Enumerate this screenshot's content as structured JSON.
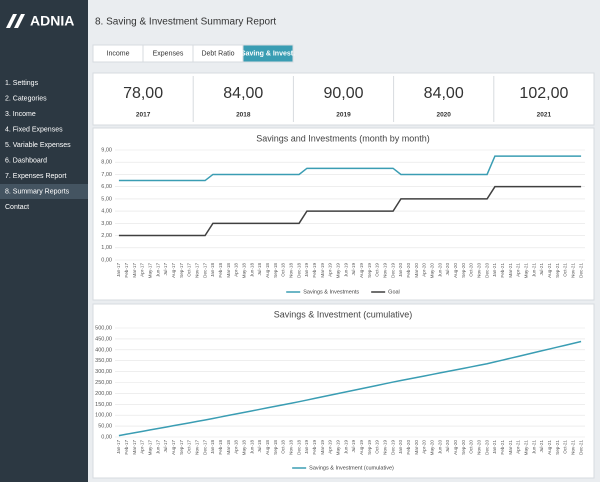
{
  "sidebar": {
    "logo": "ADNIA",
    "items": [
      "1. Settings",
      "2. Categories",
      "3. Income",
      "4. Fixed Expenses",
      "5. Variable Expenses",
      "6. Dashboard",
      "7. Expenses Report",
      "8. Summary Reports",
      "Contact"
    ],
    "active_item": 7
  },
  "header": {
    "title": "8. Saving & Investment Summary Report"
  },
  "tabs": {
    "items": [
      "Income",
      "Expenses",
      "Debt Ratio",
      "Saving & Invest."
    ],
    "active_tab": 3
  },
  "kpis": [
    {
      "value": "78,00",
      "year": "2017"
    },
    {
      "value": "84,00",
      "year": "2018"
    },
    {
      "value": "90,00",
      "year": "2019"
    },
    {
      "value": "84,00",
      "year": "2020"
    },
    {
      "value": "102,00",
      "year": "2021"
    }
  ],
  "chart_data": [
    {
      "type": "line",
      "title": "Savings and Investments (month by month)",
      "categories": [
        "Jan-17",
        "Feb-17",
        "Mar-17",
        "Apr-17",
        "May-17",
        "Jun-17",
        "Jul-17",
        "Aug-17",
        "Sep-17",
        "Oct-17",
        "Nov-17",
        "Dec-17",
        "Jan-18",
        "Feb-18",
        "Mar-18",
        "Apr-18",
        "May-18",
        "Jun-18",
        "Jul-18",
        "Aug-18",
        "Sep-18",
        "Oct-18",
        "Nov-18",
        "Dec-18",
        "Jan-19",
        "Feb-19",
        "Mar-19",
        "Apr-19",
        "May-19",
        "Jun-19",
        "Jul-19",
        "Aug-19",
        "Sep-19",
        "Oct-19",
        "Nov-19",
        "Dec-19",
        "Jan-20",
        "Feb-20",
        "Mar-20",
        "Apr-20",
        "May-20",
        "Jun-20",
        "Jul-20",
        "Aug-20",
        "Sep-20",
        "Oct-20",
        "Nov-20",
        "Dec-20",
        "Jan-21",
        "Feb-21",
        "Mar-21",
        "Apr-21",
        "May-21",
        "Jun-21",
        "Jul-21",
        "Aug-21",
        "Sep-21",
        "Oct-21",
        "Nov-21",
        "Dec-21"
      ],
      "series": [
        {
          "name": "Savings & Investments",
          "color": "#3a9db3",
          "values": [
            6.5,
            6.5,
            6.5,
            6.5,
            6.5,
            6.5,
            6.5,
            6.5,
            6.5,
            6.5,
            6.5,
            6.5,
            7,
            7,
            7,
            7,
            7,
            7,
            7,
            7,
            7,
            7,
            7,
            7,
            7.5,
            7.5,
            7.5,
            7.5,
            7.5,
            7.5,
            7.5,
            7.5,
            7.5,
            7.5,
            7.5,
            7.5,
            7,
            7,
            7,
            7,
            7,
            7,
            7,
            7,
            7,
            7,
            7,
            7,
            8.5,
            8.5,
            8.5,
            8.5,
            8.5,
            8.5,
            8.5,
            8.5,
            8.5,
            8.5,
            8.5,
            8.5
          ]
        },
        {
          "name": "Goal",
          "color": "#404040",
          "values": [
            2,
            2,
            2,
            2,
            2,
            2,
            2,
            2,
            2,
            2,
            2,
            2,
            3,
            3,
            3,
            3,
            3,
            3,
            3,
            3,
            3,
            3,
            3,
            3,
            4,
            4,
            4,
            4,
            4,
            4,
            4,
            4,
            4,
            4,
            4,
            4,
            5,
            5,
            5,
            5,
            5,
            5,
            5,
            5,
            5,
            5,
            5,
            5,
            6,
            6,
            6,
            6,
            6,
            6,
            6,
            6,
            6,
            6,
            6,
            6
          ]
        }
      ],
      "ylim": [
        0,
        9
      ],
      "yticks": [
        {
          "value": 0,
          "label": "0,00"
        },
        {
          "value": 1,
          "label": "1,00"
        },
        {
          "value": 2,
          "label": "2,00"
        },
        {
          "value": 3,
          "label": "3,00"
        },
        {
          "value": 4,
          "label": "4,00"
        },
        {
          "value": 5,
          "label": "5,00"
        },
        {
          "value": 6,
          "label": "6,00"
        },
        {
          "value": 7,
          "label": "7,00"
        },
        {
          "value": 8,
          "label": "8,00"
        },
        {
          "value": 9,
          "label": "9,00"
        }
      ],
      "grid": true
    },
    {
      "type": "line",
      "title": "Savings & Investment (cumulative)",
      "categories": [
        "Jan-17",
        "Feb-17",
        "Mar-17",
        "Apr-17",
        "May-17",
        "Jun-17",
        "Jul-17",
        "Aug-17",
        "Sep-17",
        "Oct-17",
        "Nov-17",
        "Dec-17",
        "Jan-18",
        "Feb-18",
        "Mar-18",
        "Apr-18",
        "May-18",
        "Jun-18",
        "Jul-18",
        "Aug-18",
        "Sep-18",
        "Oct-18",
        "Nov-18",
        "Dec-18",
        "Jan-19",
        "Feb-19",
        "Mar-19",
        "Apr-19",
        "May-19",
        "Jun-19",
        "Jul-19",
        "Aug-19",
        "Sep-19",
        "Oct-19",
        "Nov-19",
        "Dec-19",
        "Jan-20",
        "Feb-20",
        "Mar-20",
        "Apr-20",
        "May-20",
        "Jun-20",
        "Jul-20",
        "Aug-20",
        "Sep-20",
        "Oct-20",
        "Nov-20",
        "Dec-20",
        "Jan-21",
        "Feb-21",
        "Mar-21",
        "Apr-21",
        "May-21",
        "Jun-21",
        "Jul-21",
        "Aug-21",
        "Sep-21",
        "Oct-21",
        "Nov-21",
        "Dec-21"
      ],
      "series": [
        {
          "name": "Savings & Investment (cumulative)",
          "color": "#3a9db3",
          "values": [
            6.5,
            13,
            19.5,
            26,
            32.5,
            39,
            45.5,
            52,
            58.5,
            65,
            71.5,
            78,
            85,
            92,
            99,
            106,
            113,
            120,
            127,
            134,
            141,
            148,
            155,
            162,
            169.5,
            177,
            184.5,
            192,
            199.5,
            207,
            214.5,
            222,
            229.5,
            237,
            244.5,
            252,
            259,
            266,
            273,
            280,
            287,
            294,
            301,
            308,
            315,
            322,
            329,
            336,
            344.5,
            353,
            361.5,
            370,
            378.5,
            387,
            395.5,
            404,
            412.5,
            421,
            429.5,
            438
          ]
        }
      ],
      "ylim": [
        0,
        500
      ],
      "yticks": [
        {
          "value": 0,
          "label": "0,00"
        },
        {
          "value": 50,
          "label": "50,00"
        },
        {
          "value": 100,
          "label": "100,00"
        },
        {
          "value": 150,
          "label": "150,00"
        },
        {
          "value": 200,
          "label": "200,00"
        },
        {
          "value": 250,
          "label": "250,00"
        },
        {
          "value": 300,
          "label": "300,00"
        },
        {
          "value": 350,
          "label": "350,00"
        },
        {
          "value": 400,
          "label": "400,00"
        },
        {
          "value": 450,
          "label": "450,00"
        },
        {
          "value": 500,
          "label": "500,00"
        }
      ],
      "grid": true
    }
  ]
}
